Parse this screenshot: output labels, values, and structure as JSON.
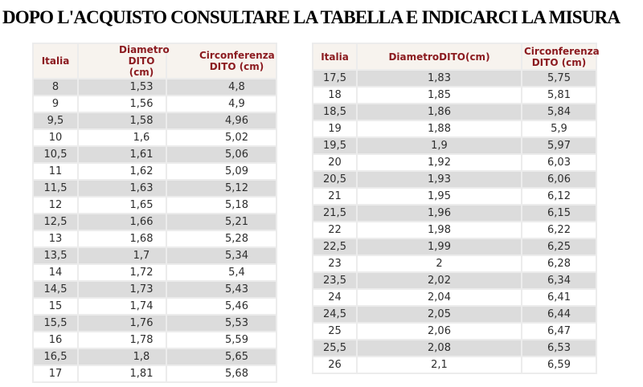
{
  "title": "DOPO L'ACQUISTO CONSULTARE LA TABELLA E INDICARCI LA MISURA",
  "colors": {
    "header_text": "#8b1a1f",
    "header_bg": "#f7f3ee",
    "row_gray": "#dcdcdc",
    "row_white": "#ffffff",
    "grid_spacer": "#ececec",
    "data_text": "#2e2e2e",
    "title_text": "#000000"
  },
  "tables": {
    "left": {
      "headers": [
        "Italia",
        "Diametro\nDITO (cm)",
        "Circonferenza\nDITO (cm)"
      ],
      "rows": [
        [
          "8",
          "1,53",
          "4,8"
        ],
        [
          "9",
          "1,56",
          "4,9"
        ],
        [
          "9,5",
          "1,58",
          "4,96"
        ],
        [
          "10",
          "1,6",
          "5,02"
        ],
        [
          "10,5",
          "1,61",
          "5,06"
        ],
        [
          "11",
          "1,62",
          "5,09"
        ],
        [
          "11,5",
          "1,63",
          "5,12"
        ],
        [
          "12",
          "1,65",
          "5,18"
        ],
        [
          "12,5",
          "1,66",
          "5,21"
        ],
        [
          "13",
          "1,68",
          "5,28"
        ],
        [
          "13,5",
          "1,7",
          "5,34"
        ],
        [
          "14",
          "1,72",
          "5,4"
        ],
        [
          "14,5",
          "1,73",
          "5,43"
        ],
        [
          "15",
          "1,74",
          "5,46"
        ],
        [
          "15,5",
          "1,76",
          "5,53"
        ],
        [
          "16",
          "1,78",
          "5,59"
        ],
        [
          "16,5",
          "1,8",
          "5,65"
        ],
        [
          "17",
          "1,81",
          "5,68"
        ]
      ]
    },
    "right": {
      "headers": [
        "Italia",
        "DiametroDITO(cm)",
        "Circonferenza\nDITO (cm)"
      ],
      "rows": [
        [
          "17,5",
          "1,83",
          "5,75"
        ],
        [
          "18",
          "1,85",
          "5,81"
        ],
        [
          "18,5",
          "1,86",
          "5,84"
        ],
        [
          "19",
          "1,88",
          "5,9"
        ],
        [
          "19,5",
          "1,9",
          "5,97"
        ],
        [
          "20",
          "1,92",
          "6,03"
        ],
        [
          "20,5",
          "1,93",
          "6,06"
        ],
        [
          "21",
          "1,95",
          "6,12"
        ],
        [
          "21,5",
          "1,96",
          "6,15"
        ],
        [
          "22",
          "1,98",
          "6,22"
        ],
        [
          "22,5",
          "1,99",
          "6,25"
        ],
        [
          "23",
          "2",
          "6,28"
        ],
        [
          "23,5",
          "2,02",
          "6,34"
        ],
        [
          "24",
          "2,04",
          "6,41"
        ],
        [
          "24,5",
          "2,05",
          "6,44"
        ],
        [
          "25",
          "2,06",
          "6,47"
        ],
        [
          "25,5",
          "2,08",
          "6,53"
        ],
        [
          "26",
          "2,1",
          "6,59"
        ]
      ]
    }
  }
}
